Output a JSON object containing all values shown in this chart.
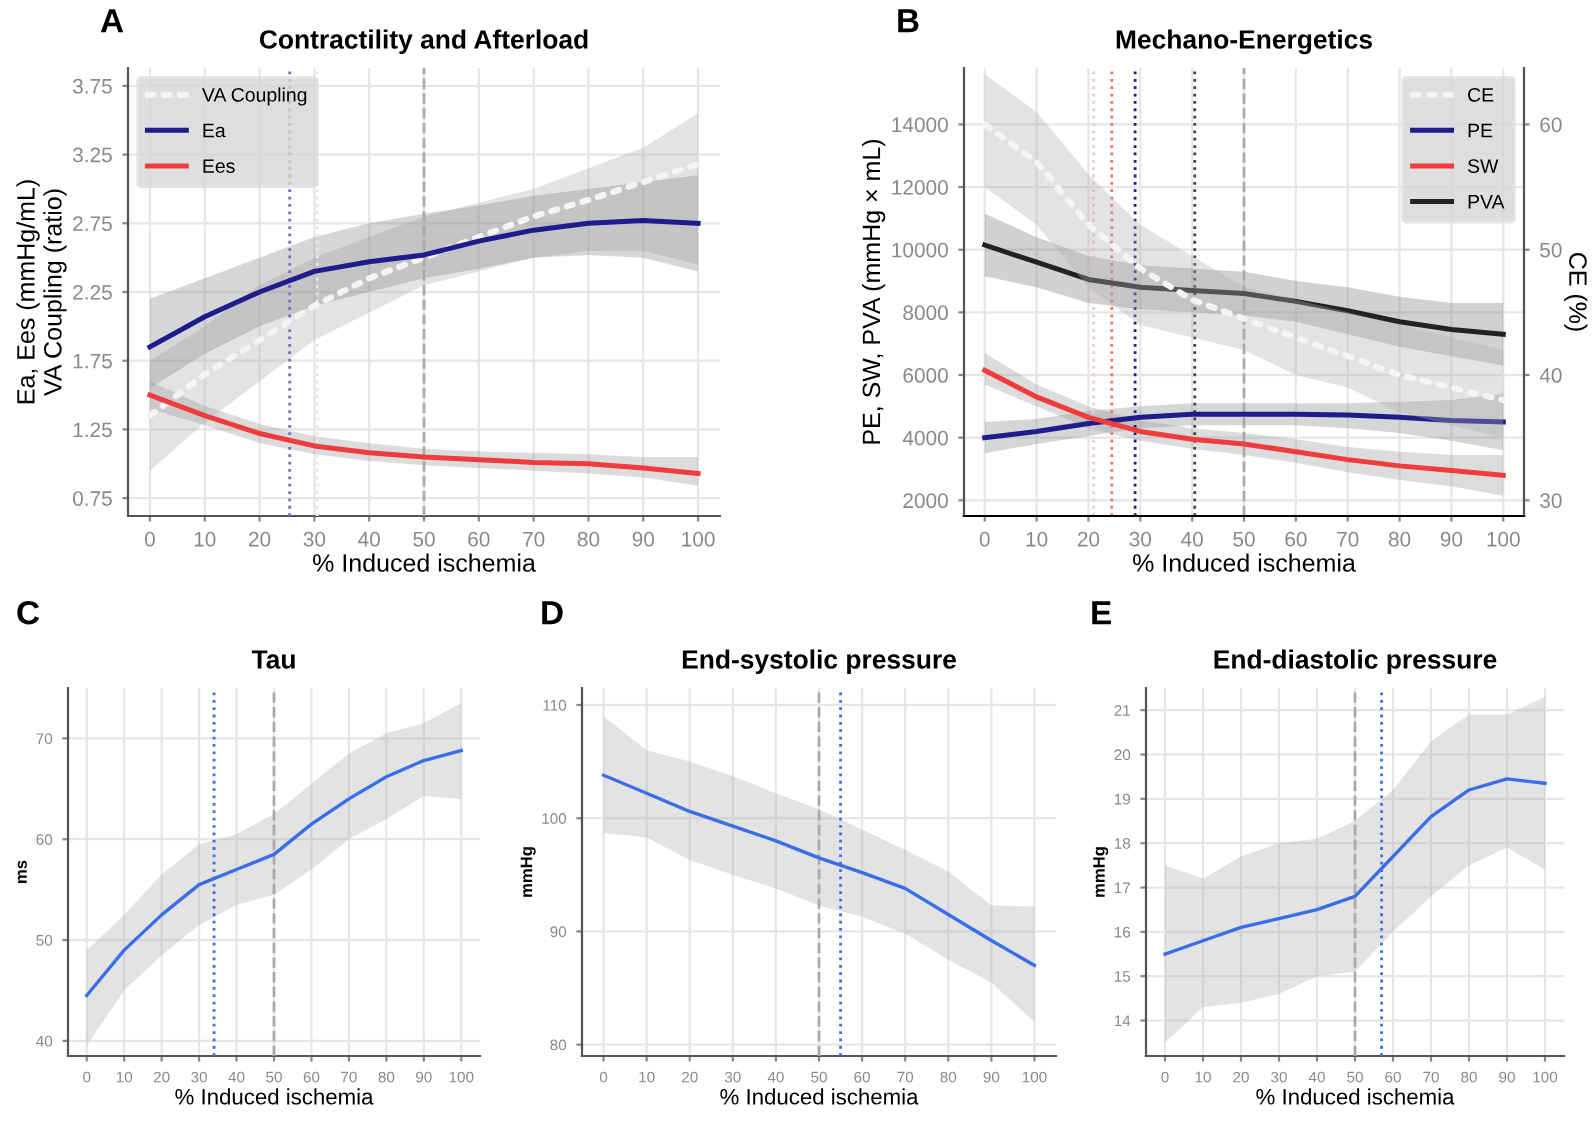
{
  "chart_data": [
    {
      "type": "line",
      "title": "Contractility and Afterload",
      "xlabel": "% Induced ischemia",
      "ylabel": "Ea, Ees (mmHg/mL)\nVA Coupling (ratio)",
      "annotations": [
        "A"
      ],
      "xlim": [
        -4,
        104
      ],
      "xticks": [
        0,
        10,
        20,
        30,
        40,
        50,
        60,
        70,
        80,
        90,
        100
      ],
      "ylim": [
        0.62,
        3.88
      ],
      "yticks": [
        0.75,
        1.25,
        1.75,
        2.25,
        2.75,
        3.25,
        3.75
      ],
      "grid": true,
      "legend": "top left",
      "marker": "none",
      "x": [
        0,
        10,
        20,
        30,
        40,
        50,
        60,
        70,
        80,
        90,
        100
      ],
      "series": [
        {
          "name": "VA Coupling",
          "color": "#f4f4f4",
          "line_style": "dotted",
          "values": [
            1.35,
            1.65,
            1.9,
            2.15,
            2.35,
            2.5,
            2.65,
            2.8,
            2.92,
            3.05,
            3.18
          ],
          "lower": [
            0.95,
            1.3,
            1.6,
            1.9,
            2.1,
            2.3,
            2.4,
            2.5,
            2.55,
            2.55,
            2.45
          ],
          "upper": [
            1.75,
            2.0,
            2.3,
            2.5,
            2.65,
            2.8,
            2.9,
            3.0,
            3.15,
            3.3,
            3.55
          ]
        },
        {
          "name": "Ea",
          "color": "#1c1c8c",
          "line_style": "solid",
          "values": [
            1.85,
            2.07,
            2.25,
            2.4,
            2.47,
            2.52,
            2.62,
            2.7,
            2.75,
            2.77,
            2.75
          ],
          "lower": [
            1.55,
            1.8,
            2.0,
            2.15,
            2.25,
            2.35,
            2.42,
            2.5,
            2.52,
            2.5,
            2.4
          ],
          "upper": [
            2.2,
            2.35,
            2.5,
            2.65,
            2.75,
            2.82,
            2.88,
            2.95,
            3.0,
            3.05,
            3.1
          ]
        },
        {
          "name": "Ees",
          "color": "#f03c3c",
          "line_style": "solid",
          "values": [
            1.5,
            1.35,
            1.22,
            1.13,
            1.08,
            1.05,
            1.03,
            1.01,
            1.0,
            0.97,
            0.93
          ],
          "lower": [
            1.4,
            1.28,
            1.15,
            1.07,
            1.02,
            0.99,
            0.97,
            0.95,
            0.93,
            0.9,
            0.84
          ],
          "upper": [
            1.6,
            1.42,
            1.29,
            1.2,
            1.15,
            1.11,
            1.09,
            1.08,
            1.07,
            1.05,
            1.05
          ]
        }
      ],
      "ref_lines": [
        {
          "axis": "x",
          "value": 50,
          "color": "#aaaaaa",
          "line_style": "dashed"
        },
        {
          "axis": "x",
          "value": 25.5,
          "color": "#7070c0",
          "line_style": "dotted"
        },
        {
          "axis": "x",
          "value": 30.5,
          "color": "#e8e8e8",
          "line_style": "dotted"
        }
      ]
    },
    {
      "type": "line",
      "title": "Mechano-Energetics",
      "xlabel": "% Induced ischemia",
      "ylabel": "PE, SW, PVA (mmHg × mL)",
      "y2label": "CE (%)",
      "annotations": [
        "B"
      ],
      "xlim": [
        -4,
        104
      ],
      "xticks": [
        0,
        10,
        20,
        30,
        40,
        50,
        60,
        70,
        80,
        90,
        100
      ],
      "ylim": [
        1500,
        15800
      ],
      "yticks": [
        2000,
        4000,
        6000,
        8000,
        10000,
        12000,
        14000
      ],
      "y2lim": [
        28.75,
        64.5
      ],
      "y2ticks": [
        30,
        40,
        50,
        60
      ],
      "grid": true,
      "legend": "top right",
      "marker": "none",
      "x": [
        0,
        10,
        20,
        30,
        40,
        50,
        60,
        70,
        80,
        90,
        100
      ],
      "series": [
        {
          "name": "CE",
          "color": "#f4f4f4",
          "line_style": "dotted",
          "axis": "y2",
          "values": [
            60,
            57,
            52,
            48.5,
            46,
            44.5,
            43,
            41.5,
            40,
            39,
            38
          ],
          "lower": [
            55,
            52,
            47,
            44,
            43,
            42,
            40,
            39,
            37,
            36,
            35
          ],
          "upper": [
            64,
            61,
            56,
            52,
            49.5,
            47,
            46,
            45,
            44,
            43,
            42
          ]
        },
        {
          "name": "PE",
          "color": "#1c1c8c",
          "line_style": "solid",
          "values": [
            4000,
            4200,
            4450,
            4650,
            4750,
            4750,
            4750,
            4720,
            4650,
            4550,
            4500
          ],
          "lower": [
            3500,
            3800,
            4050,
            4300,
            4400,
            4400,
            4400,
            4300,
            4150,
            3900,
            3600
          ],
          "upper": [
            4500,
            4600,
            4850,
            5000,
            5100,
            5100,
            5100,
            5100,
            5150,
            5200,
            5400
          ]
        },
        {
          "name": "SW",
          "color": "#f03c3c",
          "line_style": "solid",
          "values": [
            6150,
            5300,
            4650,
            4200,
            3950,
            3800,
            3550,
            3300,
            3100,
            2950,
            2800
          ],
          "lower": [
            5700,
            5000,
            4300,
            3900,
            3650,
            3450,
            3200,
            2900,
            2650,
            2450,
            2150
          ],
          "upper": [
            6700,
            5700,
            5000,
            4550,
            4300,
            4150,
            3950,
            3700,
            3550,
            3450,
            3450
          ]
        },
        {
          "name": "PVA",
          "color": "#222222",
          "line_style": "solid",
          "values": [
            10150,
            9600,
            9050,
            8800,
            8700,
            8600,
            8350,
            8050,
            7700,
            7450,
            7300
          ],
          "lower": [
            9150,
            8800,
            8300,
            8100,
            8000,
            7900,
            7700,
            7300,
            6900,
            6600,
            6300
          ],
          "upper": [
            11150,
            10400,
            9800,
            9500,
            9400,
            9300,
            9000,
            8800,
            8500,
            8300,
            8300
          ]
        }
      ],
      "ref_lines": [
        {
          "axis": "x",
          "value": 50,
          "color": "#aaaaaa",
          "line_style": "dashed"
        },
        {
          "axis": "x",
          "value": 21,
          "color": "#f0c8c8",
          "line_style": "dotted"
        },
        {
          "axis": "x",
          "value": 24.5,
          "color": "#f07070",
          "line_style": "dotted"
        },
        {
          "axis": "x",
          "value": 29,
          "color": "#1c1c8c",
          "line_style": "dotted"
        },
        {
          "axis": "x",
          "value": 40.5,
          "color": "#444444",
          "line_style": "dotted"
        }
      ]
    },
    {
      "type": "line",
      "title": "Tau",
      "xlabel": "% Induced ischemia",
      "ylabel": "ms",
      "annotations": [
        "C"
      ],
      "xlim": [
        -5,
        105
      ],
      "xticks": [
        0,
        10,
        20,
        30,
        40,
        50,
        60,
        70,
        80,
        90,
        100
      ],
      "ylim": [
        38.5,
        75
      ],
      "yticks": [
        40,
        50,
        60,
        70
      ],
      "grid": true,
      "marker": "none",
      "x": [
        0,
        10,
        20,
        30,
        40,
        50,
        60,
        70,
        80,
        90,
        100
      ],
      "series": [
        {
          "color": "#3a6ee8",
          "line_style": "solid",
          "values": [
            44.5,
            49,
            52.5,
            55.5,
            57,
            58.5,
            61.5,
            64,
            66.2,
            67.8,
            68.8
          ],
          "lower": [
            39.5,
            45,
            48.5,
            51.5,
            53.5,
            54.5,
            57,
            60,
            62,
            64.3,
            64
          ],
          "upper": [
            49,
            52.5,
            56.5,
            59.5,
            60.5,
            62.5,
            65.5,
            68.5,
            70.5,
            71.5,
            73.5
          ]
        }
      ],
      "ref_lines": [
        {
          "axis": "x",
          "value": 50,
          "color": "#aaaaaa",
          "line_style": "dashed"
        },
        {
          "axis": "x",
          "value": 34,
          "color": "#3a6ee8",
          "line_style": "dotted"
        }
      ]
    },
    {
      "type": "line",
      "title": "End-systolic pressure",
      "xlabel": "% Induced ischemia",
      "ylabel": "mmHg",
      "annotations": [
        "D"
      ],
      "xlim": [
        -5,
        105
      ],
      "xticks": [
        0,
        10,
        20,
        30,
        40,
        50,
        60,
        70,
        80,
        90,
        100
      ],
      "ylim": [
        79,
        111.5
      ],
      "yticks": [
        80,
        90,
        100,
        110
      ],
      "grid": true,
      "marker": "none",
      "x": [
        0,
        10,
        20,
        30,
        40,
        50,
        60,
        70,
        80,
        90,
        100
      ],
      "series": [
        {
          "color": "#3a6ee8",
          "line_style": "solid",
          "values": [
            103.8,
            102.2,
            100.6,
            99.3,
            98,
            96.5,
            95.2,
            93.8,
            91.5,
            89.2,
            87
          ],
          "lower": [
            98.7,
            98.3,
            96.3,
            95,
            93.8,
            92.3,
            91.3,
            89.8,
            87.5,
            85.5,
            82
          ],
          "upper": [
            109,
            106,
            105,
            103.7,
            102.2,
            100.8,
            99,
            97.2,
            95.3,
            92.3,
            92.2
          ]
        }
      ],
      "ref_lines": [
        {
          "axis": "x",
          "value": 50,
          "color": "#aaaaaa",
          "line_style": "dashed"
        },
        {
          "axis": "x",
          "value": 55,
          "color": "#3a6ee8",
          "line_style": "dotted"
        }
      ]
    },
    {
      "type": "line",
      "title": "End-diastolic pressure",
      "xlabel": "% Induced ischemia",
      "ylabel": "mmHg",
      "annotations": [
        "E"
      ],
      "xlim": [
        -5,
        105
      ],
      "xticks": [
        0,
        10,
        20,
        30,
        40,
        50,
        60,
        70,
        80,
        90,
        100
      ],
      "ylim": [
        13.2,
        21.5
      ],
      "yticks": [
        14,
        15,
        16,
        17,
        18,
        19,
        20,
        21
      ],
      "grid": true,
      "marker": "none",
      "x": [
        0,
        10,
        20,
        30,
        40,
        50,
        60,
        70,
        80,
        90,
        100
      ],
      "series": [
        {
          "color": "#3a6ee8",
          "line_style": "solid",
          "values": [
            15.5,
            15.8,
            16.1,
            16.3,
            16.5,
            16.8,
            17.7,
            18.6,
            19.2,
            19.45,
            19.35
          ],
          "lower": [
            13.5,
            14.3,
            14.4,
            14.6,
            15.0,
            15.1,
            16.0,
            16.8,
            17.5,
            17.9,
            17.4
          ],
          "upper": [
            17.5,
            17.2,
            17.7,
            18.0,
            18.1,
            18.5,
            19.2,
            20.3,
            20.9,
            20.9,
            21.3
          ]
        }
      ],
      "ref_lines": [
        {
          "axis": "x",
          "value": 50,
          "color": "#aaaaaa",
          "line_style": "dashed"
        },
        {
          "axis": "x",
          "value": 57,
          "color": "#3a6ee8",
          "line_style": "dotted"
        }
      ]
    }
  ]
}
